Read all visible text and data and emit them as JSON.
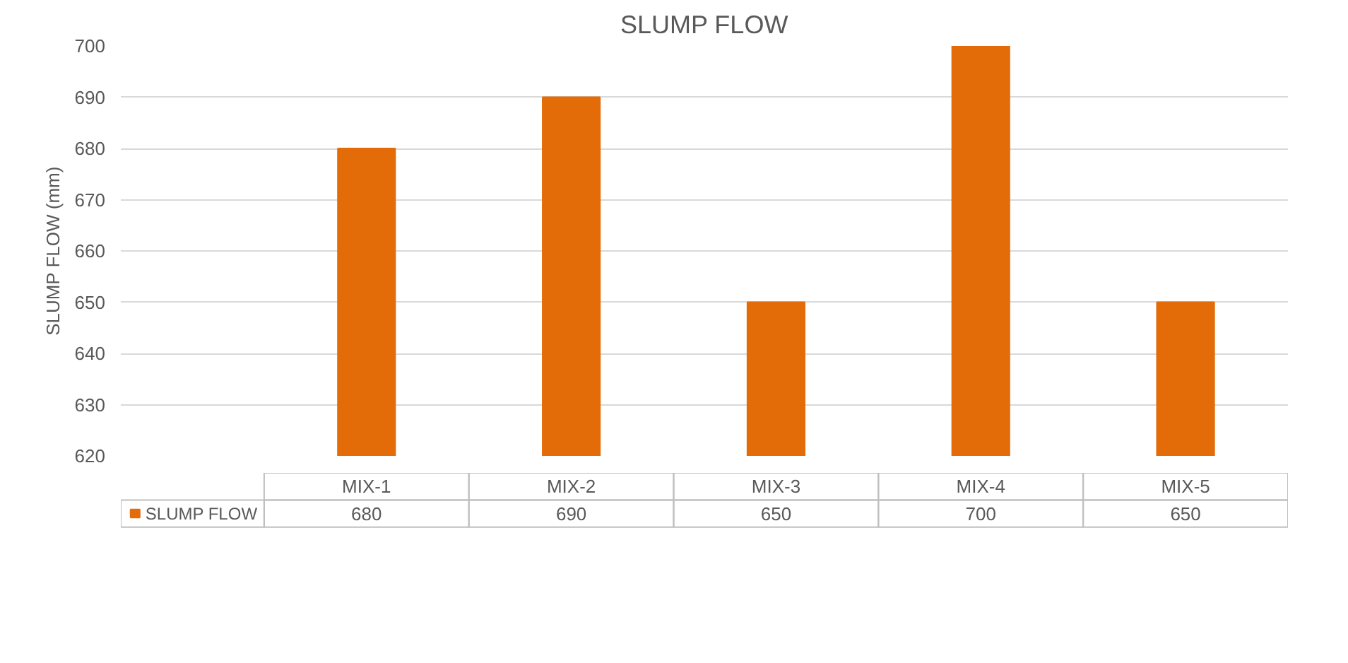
{
  "chart_data": {
    "type": "bar",
    "title": "SLUMP FLOW",
    "ylabel": "SLUMP FLOW (mm)",
    "categories": [
      "MIX-1",
      "MIX-2",
      "MIX-3",
      "MIX-4",
      "MIX-5"
    ],
    "series": [
      {
        "name": "SLUMP FLOW",
        "color": "#e36c09",
        "values": [
          680,
          690,
          650,
          700,
          650
        ]
      }
    ],
    "ylim": [
      620,
      700
    ],
    "yticks": [
      620,
      630,
      640,
      650,
      660,
      670,
      680,
      690,
      700
    ],
    "grid": "y",
    "legend": "bottom",
    "data_labels": true
  }
}
